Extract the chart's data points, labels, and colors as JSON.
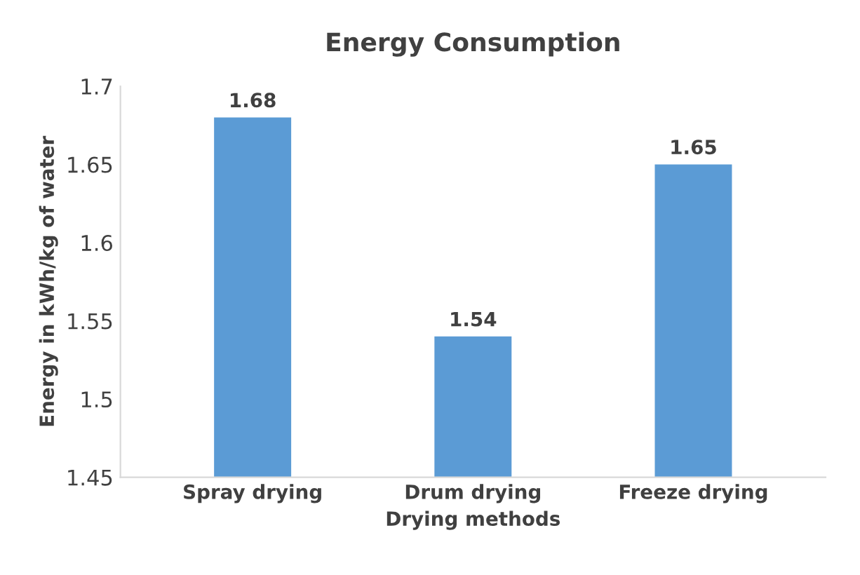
{
  "chart_data": {
    "type": "bar",
    "title": "Energy Consumption",
    "xlabel": "Drying methods",
    "ylabel": "Energy in kWh/kg of water",
    "categories": [
      "Spray drying",
      "Drum drying",
      "Freeze drying"
    ],
    "values": [
      1.68,
      1.54,
      1.65
    ],
    "color": "#5b9bd5",
    "ylim": [
      1.45,
      1.7
    ],
    "yticks": [
      1.45,
      1.5,
      1.55,
      1.6,
      1.65,
      1.7
    ],
    "grid": false,
    "data_labels": true
  }
}
